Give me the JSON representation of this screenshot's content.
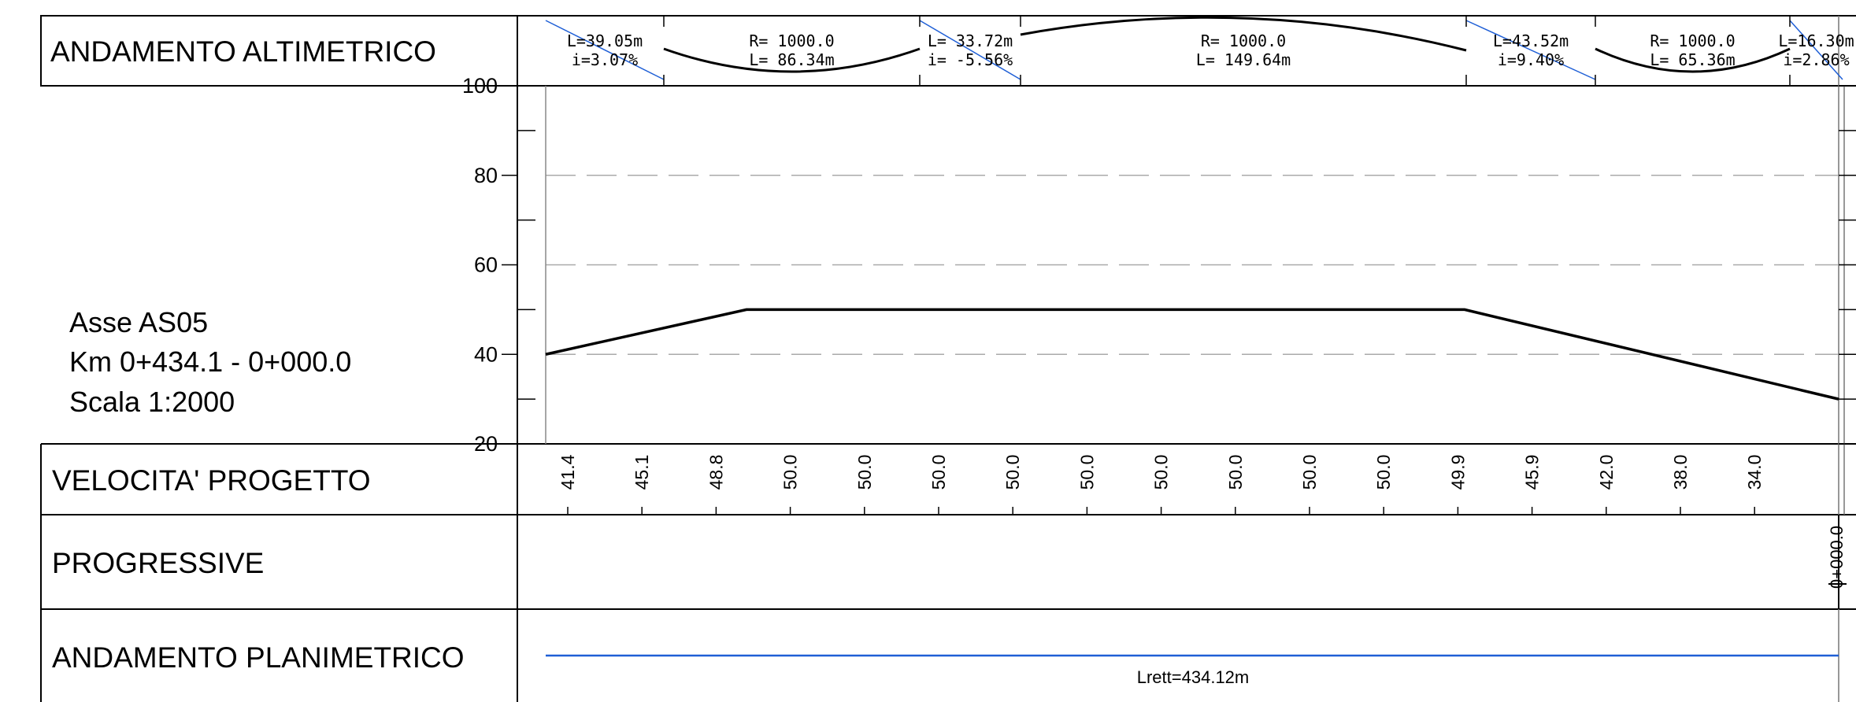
{
  "rows": {
    "profile_title": "ANDAMENTO ALTIMETRICO",
    "speed_title": "VELOCITA' PROGETTO",
    "progressive_title": "PROGRESSIVE",
    "plan_title": "ANDAMENTO PLANIMETRICO"
  },
  "axis_info": {
    "line1": "Asse AS05",
    "line2": "Km 0+434.1 - 0+000.0",
    "line3": "Scala 1:2000"
  },
  "vertical_elements": [
    {
      "kind": "grade",
      "line1": "L=39.05m",
      "line2": "i=3.07%"
    },
    {
      "kind": "curve",
      "line1": "R= 1000.0",
      "line2": "L= 86.34m"
    },
    {
      "kind": "grade",
      "line1": "L= 33.72m",
      "line2": "i= -5.56%"
    },
    {
      "kind": "curve",
      "line1": "R= 1000.0",
      "line2": "L= 149.64m"
    },
    {
      "kind": "grade",
      "line1": "L=43.52m",
      "line2": "i=9.40%"
    },
    {
      "kind": "curve",
      "line1": "R= 1000.0",
      "line2": "L= 65.36m"
    },
    {
      "kind": "grade",
      "line1": "L=16.30m",
      "line2": "i=2.86%"
    }
  ],
  "chart_data": {
    "type": "line",
    "y_ticks": [
      "100",
      "80",
      "60",
      "40",
      "20"
    ],
    "ylim": [
      20,
      100
    ],
    "grid": "dashed",
    "series": [
      {
        "values": [
          40,
          50,
          50,
          30
        ]
      }
    ],
    "speeds": [
      "41.4",
      "45.1",
      "48.8",
      "50.0",
      "50.0",
      "50.0",
      "50.0",
      "50.0",
      "50.0",
      "50.0",
      "50.0",
      "50.0",
      "49.9",
      "45.9",
      "42.0",
      "38.0",
      "34.0"
    ],
    "progressive_label": "0+000.0",
    "plan_label": "Lrett=434.12m"
  },
  "colors": {
    "line": "#000000",
    "grid": "#aaaaaa",
    "blue": "#1f5fd6"
  }
}
